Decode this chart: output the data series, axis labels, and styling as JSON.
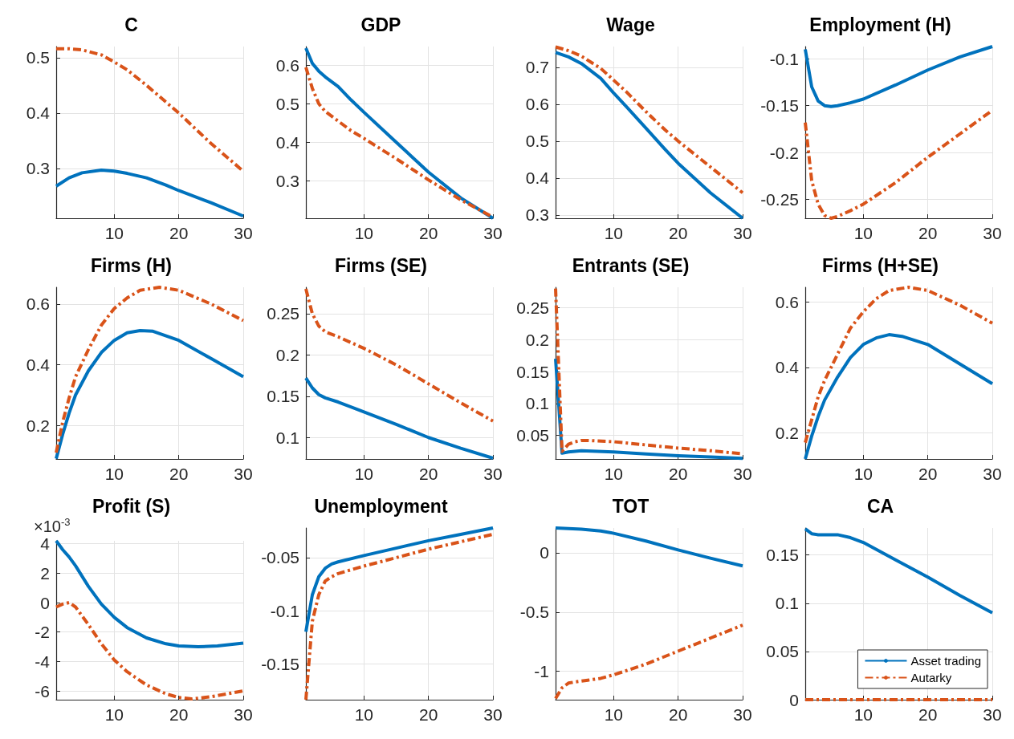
{
  "chart_data": [
    {
      "type": "line",
      "title": "C",
      "xlim": [
        1,
        30
      ],
      "xticks": [
        10,
        20,
        30
      ],
      "ylim": [
        0.21,
        0.52
      ],
      "yticks": [
        0.3,
        0.4,
        0.5
      ],
      "grid": true,
      "series": [
        {
          "color": "#0072bd",
          "line_style": "solid",
          "x": [
            1,
            3,
            5,
            8,
            10,
            12,
            15,
            18,
            20,
            25,
            30
          ],
          "values": [
            0.268,
            0.283,
            0.292,
            0.297,
            0.295,
            0.291,
            0.283,
            0.27,
            0.26,
            0.238,
            0.214
          ]
        },
        {
          "color": "#d95319",
          "line_style": "dashed",
          "x": [
            1,
            3,
            5,
            8,
            10,
            12,
            15,
            18,
            20,
            25,
            30
          ],
          "values": [
            0.516,
            0.516,
            0.514,
            0.505,
            0.492,
            0.478,
            0.45,
            0.42,
            0.4,
            0.345,
            0.295
          ]
        }
      ]
    },
    {
      "type": "line",
      "title": "GDP",
      "xlim": [
        1,
        30
      ],
      "xticks": [
        10,
        20,
        30
      ],
      "ylim": [
        0.202,
        0.649
      ],
      "yticks": [
        0.3,
        0.4,
        0.5,
        0.6
      ],
      "grid": true,
      "series": [
        {
          "color": "#0072bd",
          "line_style": "solid",
          "x": [
            1,
            2,
            3,
            4,
            6,
            8,
            10,
            15,
            20,
            25,
            30
          ],
          "values": [
            0.645,
            0.605,
            0.585,
            0.57,
            0.545,
            0.51,
            0.478,
            0.4,
            0.322,
            0.255,
            0.202
          ]
        },
        {
          "color": "#d95319",
          "line_style": "dashed",
          "x": [
            1,
            2,
            3,
            4,
            6,
            8,
            10,
            15,
            20,
            25,
            30
          ],
          "values": [
            0.595,
            0.54,
            0.5,
            0.48,
            0.455,
            0.43,
            0.41,
            0.357,
            0.302,
            0.25,
            0.205
          ]
        }
      ]
    },
    {
      "type": "line",
      "title": "Wage",
      "xlim": [
        1,
        30
      ],
      "xticks": [
        10,
        20,
        30
      ],
      "ylim": [
        0.291,
        0.756
      ],
      "yticks": [
        0.3,
        0.4,
        0.5,
        0.6,
        0.7
      ],
      "grid": true,
      "series": [
        {
          "color": "#0072bd",
          "line_style": "solid",
          "x": [
            1,
            3,
            5,
            8,
            10,
            12,
            15,
            18,
            20,
            25,
            30
          ],
          "values": [
            0.74,
            0.728,
            0.71,
            0.67,
            0.63,
            0.593,
            0.535,
            0.477,
            0.44,
            0.36,
            0.291
          ]
        },
        {
          "color": "#d95319",
          "line_style": "dashed",
          "x": [
            1,
            3,
            5,
            8,
            10,
            12,
            15,
            18,
            20,
            25,
            30
          ],
          "values": [
            0.755,
            0.745,
            0.73,
            0.697,
            0.665,
            0.633,
            0.58,
            0.53,
            0.5,
            0.43,
            0.36
          ]
        }
      ]
    },
    {
      "type": "line",
      "title": "Employment (H)",
      "xlim": [
        1,
        30
      ],
      "xticks": [
        10,
        20,
        30
      ],
      "ylim": [
        -0.27,
        -0.087
      ],
      "yticks": [
        -0.25,
        -0.2,
        -0.15,
        -0.1
      ],
      "grid": true,
      "series": [
        {
          "color": "#0072bd",
          "line_style": "solid",
          "x": [
            1,
            2,
            3,
            4,
            5,
            6,
            8,
            10,
            15,
            20,
            25,
            30
          ],
          "values": [
            -0.09,
            -0.13,
            -0.145,
            -0.15,
            -0.151,
            -0.15,
            -0.147,
            -0.143,
            -0.128,
            -0.112,
            -0.098,
            -0.087
          ]
        },
        {
          "color": "#d95319",
          "line_style": "dashed",
          "x": [
            1,
            2,
            3,
            4,
            5,
            6,
            8,
            10,
            15,
            20,
            25,
            30
          ],
          "values": [
            -0.168,
            -0.23,
            -0.255,
            -0.267,
            -0.27,
            -0.268,
            -0.262,
            -0.255,
            -0.232,
            -0.205,
            -0.18,
            -0.155
          ]
        }
      ]
    },
    {
      "type": "line",
      "title": "Firms (H)",
      "xlim": [
        1,
        30
      ],
      "xticks": [
        10,
        20,
        30
      ],
      "ylim": [
        0.089,
        0.655
      ],
      "yticks": [
        0.2,
        0.4,
        0.6
      ],
      "grid": true,
      "series": [
        {
          "color": "#0072bd",
          "line_style": "solid",
          "x": [
            1,
            2,
            3,
            4,
            6,
            8,
            10,
            12,
            14,
            16,
            20,
            25,
            30
          ],
          "values": [
            0.09,
            0.17,
            0.24,
            0.3,
            0.38,
            0.44,
            0.48,
            0.505,
            0.512,
            0.51,
            0.48,
            0.42,
            0.36
          ]
        },
        {
          "color": "#d95319",
          "line_style": "dashed",
          "x": [
            1,
            2,
            3,
            4,
            6,
            8,
            10,
            12,
            14,
            17,
            20,
            25,
            30
          ],
          "values": [
            0.11,
            0.21,
            0.29,
            0.36,
            0.45,
            0.53,
            0.585,
            0.62,
            0.645,
            0.655,
            0.645,
            0.6,
            0.545
          ]
        }
      ]
    },
    {
      "type": "line",
      "title": "Firms (SE)",
      "xlim": [
        1,
        30
      ],
      "xticks": [
        10,
        20,
        30
      ],
      "ylim": [
        0.074,
        0.282
      ],
      "yticks": [
        0.1,
        0.15,
        0.2,
        0.25
      ],
      "grid": true,
      "series": [
        {
          "color": "#0072bd",
          "line_style": "solid",
          "x": [
            1,
            2,
            3,
            4,
            6,
            10,
            15,
            20,
            25,
            30
          ],
          "values": [
            0.172,
            0.16,
            0.152,
            0.148,
            0.143,
            0.131,
            0.116,
            0.1,
            0.087,
            0.075
          ]
        },
        {
          "color": "#d95319",
          "line_style": "dashed",
          "x": [
            1,
            2,
            3,
            4,
            6,
            10,
            15,
            20,
            25,
            30
          ],
          "values": [
            0.28,
            0.25,
            0.235,
            0.228,
            0.222,
            0.208,
            0.188,
            0.165,
            0.142,
            0.12
          ]
        }
      ]
    },
    {
      "type": "line",
      "title": "Entrants (SE)",
      "xlim": [
        1,
        30
      ],
      "xticks": [
        10,
        20,
        30
      ],
      "ylim": [
        0.013,
        0.282
      ],
      "yticks": [
        0.05,
        0.1,
        0.15,
        0.2,
        0.25
      ],
      "grid": true,
      "series": [
        {
          "color": "#0072bd",
          "line_style": "solid",
          "x": [
            1,
            2,
            3,
            5,
            10,
            15,
            20,
            25,
            30
          ],
          "values": [
            0.17,
            0.022,
            0.024,
            0.026,
            0.024,
            0.021,
            0.018,
            0.016,
            0.014
          ]
        },
        {
          "color": "#d95319",
          "line_style": "dashed",
          "x": [
            1,
            2,
            3,
            4,
            5,
            6,
            10,
            15,
            20,
            25,
            30
          ],
          "values": [
            0.28,
            0.025,
            0.036,
            0.04,
            0.042,
            0.042,
            0.04,
            0.035,
            0.03,
            0.026,
            0.021
          ]
        }
      ]
    },
    {
      "type": "line",
      "title": "Firms (H+SE)",
      "xlim": [
        1,
        30
      ],
      "xticks": [
        10,
        20,
        30
      ],
      "ylim": [
        0.12,
        0.645
      ],
      "yticks": [
        0.2,
        0.4,
        0.6
      ],
      "grid": true,
      "series": [
        {
          "color": "#0072bd",
          "line_style": "solid",
          "x": [
            1,
            2,
            3,
            4,
            6,
            8,
            10,
            12,
            14,
            16,
            20,
            25,
            30
          ],
          "values": [
            0.12,
            0.19,
            0.25,
            0.3,
            0.37,
            0.43,
            0.47,
            0.49,
            0.5,
            0.495,
            0.47,
            0.41,
            0.35
          ]
        },
        {
          "color": "#d95319",
          "line_style": "dashed",
          "x": [
            1,
            2,
            3,
            4,
            6,
            8,
            10,
            12,
            14,
            17,
            20,
            25,
            30
          ],
          "values": [
            0.17,
            0.24,
            0.31,
            0.36,
            0.44,
            0.52,
            0.57,
            0.61,
            0.635,
            0.645,
            0.635,
            0.59,
            0.535
          ]
        }
      ]
    },
    {
      "type": "line",
      "title": "Profit (S)",
      "annotations": [
        "×10$^{-3}$"
      ],
      "xlim": [
        1,
        30
      ],
      "xticks": [
        10,
        20,
        30
      ],
      "ylim": [
        -6.6,
        4.2
      ],
      "yticks": [
        -6,
        -4,
        -2,
        0,
        2,
        4
      ],
      "grid": true,
      "series": [
        {
          "color": "#0072bd",
          "line_style": "solid",
          "x": [
            1,
            2,
            3,
            4,
            6,
            8,
            10,
            12,
            15,
            18,
            20,
            23,
            26,
            30
          ],
          "values": [
            4.2,
            3.6,
            3.1,
            2.5,
            1.1,
            -0.1,
            -1.0,
            -1.7,
            -2.4,
            -2.8,
            -2.95,
            -3.0,
            -2.95,
            -2.75
          ]
        },
        {
          "color": "#d95319",
          "line_style": "dashed",
          "x": [
            1,
            2,
            3,
            4,
            6,
            8,
            10,
            12,
            15,
            18,
            20,
            22,
            25,
            30
          ],
          "values": [
            -0.3,
            -0.1,
            0,
            -0.3,
            -1.5,
            -2.8,
            -3.9,
            -4.7,
            -5.6,
            -6.2,
            -6.45,
            -6.55,
            -6.4,
            -6.0
          ]
        }
      ]
    },
    {
      "type": "line",
      "title": "Unemployment",
      "xlim": [
        1,
        30
      ],
      "xticks": [
        10,
        20,
        30
      ],
      "ylim": [
        -0.184,
        -0.022
      ],
      "yticks": [
        -0.15,
        -0.1,
        -0.05
      ],
      "grid": true,
      "series": [
        {
          "color": "#0072bd",
          "line_style": "solid",
          "x": [
            1,
            2,
            3,
            4,
            5,
            6,
            10,
            15,
            20,
            25,
            30
          ],
          "values": [
            -0.12,
            -0.085,
            -0.068,
            -0.06,
            -0.056,
            -0.054,
            -0.048,
            -0.041,
            -0.034,
            -0.028,
            -0.022
          ]
        },
        {
          "color": "#d95319",
          "line_style": "dashed",
          "x": [
            1,
            2,
            3,
            4,
            5,
            6,
            10,
            15,
            20,
            25,
            30
          ],
          "values": [
            -0.184,
            -0.11,
            -0.085,
            -0.072,
            -0.068,
            -0.065,
            -0.058,
            -0.05,
            -0.042,
            -0.035,
            -0.028
          ]
        }
      ]
    },
    {
      "type": "line",
      "title": "TOT",
      "xlim": [
        1,
        30
      ],
      "xticks": [
        10,
        20,
        30
      ],
      "ylim": [
        -1.24,
        0.21
      ],
      "yticks": [
        -1,
        -0.5,
        0
      ],
      "grid": true,
      "series": [
        {
          "color": "#0072bd",
          "line_style": "solid",
          "x": [
            1,
            5,
            8,
            10,
            15,
            20,
            25,
            30
          ],
          "values": [
            0.21,
            0.2,
            0.185,
            0.165,
            0.1,
            0.025,
            -0.045,
            -0.11
          ]
        },
        {
          "color": "#d95319",
          "line_style": "dashed",
          "x": [
            1,
            2,
            3,
            4,
            6,
            8,
            10,
            15,
            20,
            25,
            30
          ],
          "values": [
            -1.23,
            -1.14,
            -1.1,
            -1.09,
            -1.075,
            -1.06,
            -1.03,
            -0.94,
            -0.83,
            -0.72,
            -0.61
          ]
        }
      ]
    },
    {
      "type": "line",
      "title": "CA",
      "xlim": [
        1,
        30
      ],
      "xticks": [
        10,
        20,
        30
      ],
      "ylim": [
        0,
        0.178
      ],
      "yticks": [
        0,
        0.05,
        0.1,
        0.15
      ],
      "grid": true,
      "legend": "bottom right",
      "series": [
        {
          "name": "Asset trading",
          "color": "#0072bd",
          "line_style": "solid",
          "x": [
            1,
            2,
            3,
            6,
            8,
            10,
            15,
            20,
            25,
            30
          ],
          "values": [
            0.177,
            0.172,
            0.171,
            0.171,
            0.168,
            0.163,
            0.145,
            0.127,
            0.108,
            0.09
          ]
        },
        {
          "name": "Autarky",
          "color": "#d95319",
          "line_style": "dashed",
          "x": [
            1,
            10,
            20,
            30
          ],
          "values": [
            0,
            0,
            0,
            0
          ]
        }
      ]
    }
  ]
}
